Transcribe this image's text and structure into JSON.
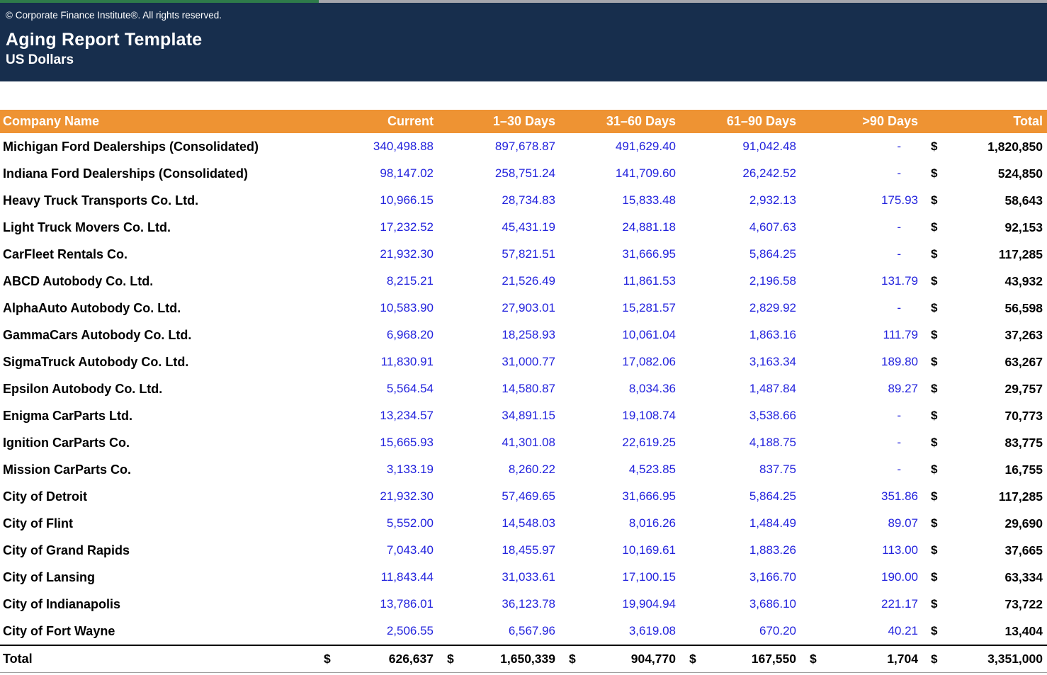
{
  "colors": {
    "navy": "#172e4d",
    "orange": "#ee9333",
    "green_strip": "#2e7b4a",
    "gray_strip": "#a5a6ad",
    "value_blue": "#2323dd"
  },
  "masthead": {
    "copyright": "© Corporate Finance Institute®. All rights reserved.",
    "title": "Aging Report Template",
    "subtitle": "US Dollars"
  },
  "table": {
    "currency_symbol": "$",
    "columns": [
      "Company Name",
      "Current",
      "1–30 Days",
      "31–60 Days",
      "61–90 Days",
      ">90 Days",
      "Total"
    ],
    "rows": [
      {
        "name": "Michigan Ford Dealerships (Consolidated)",
        "current": "340,498.88",
        "d1_30": "897,678.87",
        "d31_60": "491,629.40",
        "d61_90": "91,042.48",
        "d90_plus": "-",
        "total": "1,820,850"
      },
      {
        "name": "Indiana Ford Dealerships (Consolidated)",
        "current": "98,147.02",
        "d1_30": "258,751.24",
        "d31_60": "141,709.60",
        "d61_90": "26,242.52",
        "d90_plus": "-",
        "total": "524,850"
      },
      {
        "name": "Heavy Truck Transports Co. Ltd.",
        "current": "10,966.15",
        "d1_30": "28,734.83",
        "d31_60": "15,833.48",
        "d61_90": "2,932.13",
        "d90_plus": "175.93",
        "total": "58,643"
      },
      {
        "name": "Light Truck Movers Co. Ltd.",
        "current": "17,232.52",
        "d1_30": "45,431.19",
        "d31_60": "24,881.18",
        "d61_90": "4,607.63",
        "d90_plus": "-",
        "total": "92,153"
      },
      {
        "name": "CarFleet Rentals Co.",
        "current": "21,932.30",
        "d1_30": "57,821.51",
        "d31_60": "31,666.95",
        "d61_90": "5,864.25",
        "d90_plus": "-",
        "total": "117,285"
      },
      {
        "name": "ABCD Autobody Co. Ltd.",
        "current": "8,215.21",
        "d1_30": "21,526.49",
        "d31_60": "11,861.53",
        "d61_90": "2,196.58",
        "d90_plus": "131.79",
        "total": "43,932"
      },
      {
        "name": "AlphaAuto Autobody Co. Ltd.",
        "current": "10,583.90",
        "d1_30": "27,903.01",
        "d31_60": "15,281.57",
        "d61_90": "2,829.92",
        "d90_plus": "-",
        "total": "56,598"
      },
      {
        "name": "GammaCars Autobody Co. Ltd.",
        "current": "6,968.20",
        "d1_30": "18,258.93",
        "d31_60": "10,061.04",
        "d61_90": "1,863.16",
        "d90_plus": "111.79",
        "total": "37,263"
      },
      {
        "name": "SigmaTruck Autobody Co. Ltd.",
        "current": "11,830.91",
        "d1_30": "31,000.77",
        "d31_60": "17,082.06",
        "d61_90": "3,163.34",
        "d90_plus": "189.80",
        "total": "63,267"
      },
      {
        "name": "Epsilon Autobody Co. Ltd.",
        "current": "5,564.54",
        "d1_30": "14,580.87",
        "d31_60": "8,034.36",
        "d61_90": "1,487.84",
        "d90_plus": "89.27",
        "total": "29,757"
      },
      {
        "name": "Enigma CarParts Ltd.",
        "current": "13,234.57",
        "d1_30": "34,891.15",
        "d31_60": "19,108.74",
        "d61_90": "3,538.66",
        "d90_plus": "-",
        "total": "70,773"
      },
      {
        "name": "Ignition CarParts Co.",
        "current": "15,665.93",
        "d1_30": "41,301.08",
        "d31_60": "22,619.25",
        "d61_90": "4,188.75",
        "d90_plus": "-",
        "total": "83,775"
      },
      {
        "name": "Mission CarParts Co.",
        "current": "3,133.19",
        "d1_30": "8,260.22",
        "d31_60": "4,523.85",
        "d61_90": "837.75",
        "d90_plus": "-",
        "total": "16,755"
      },
      {
        "name": "City of Detroit",
        "current": "21,932.30",
        "d1_30": "57,469.65",
        "d31_60": "31,666.95",
        "d61_90": "5,864.25",
        "d90_plus": "351.86",
        "total": "117,285"
      },
      {
        "name": "City of Flint",
        "current": "5,552.00",
        "d1_30": "14,548.03",
        "d31_60": "8,016.26",
        "d61_90": "1,484.49",
        "d90_plus": "89.07",
        "total": "29,690"
      },
      {
        "name": "City of Grand Rapids",
        "current": "7,043.40",
        "d1_30": "18,455.97",
        "d31_60": "10,169.61",
        "d61_90": "1,883.26",
        "d90_plus": "113.00",
        "total": "37,665"
      },
      {
        "name": "City of Lansing",
        "current": "11,843.44",
        "d1_30": "31,033.61",
        "d31_60": "17,100.15",
        "d61_90": "3,166.70",
        "d90_plus": "190.00",
        "total": "63,334"
      },
      {
        "name": "City of Indianapolis",
        "current": "13,786.01",
        "d1_30": "36,123.78",
        "d31_60": "19,904.94",
        "d61_90": "3,686.10",
        "d90_plus": "221.17",
        "total": "73,722"
      },
      {
        "name": "City of Fort Wayne",
        "current": "2,506.55",
        "d1_30": "6,567.96",
        "d31_60": "3,619.08",
        "d61_90": "670.20",
        "d90_plus": "40.21",
        "total": "13,404"
      }
    ],
    "total_row": {
      "label": "Total",
      "current": "626,637",
      "d1_30": "1,650,339",
      "d31_60": "904,770",
      "d61_90": "167,550",
      "d90_plus": "1,704",
      "total": "3,351,000"
    }
  }
}
